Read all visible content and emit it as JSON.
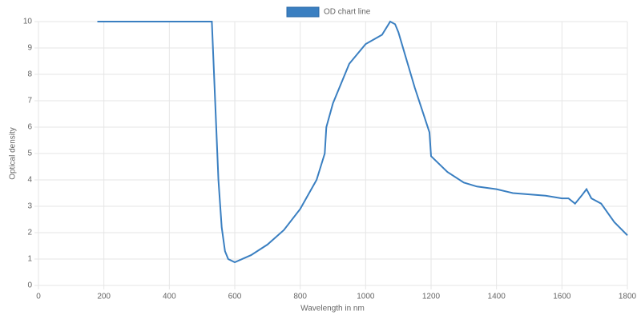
{
  "chart_data": {
    "type": "line",
    "x_label": "Wavelength in nm",
    "y_label": "Optical density",
    "series": [
      {
        "name": "OD chart line",
        "color": "#3a7fc1",
        "x": [
          180,
          300,
          400,
          530,
          540,
          550,
          560,
          570,
          580,
          600,
          650,
          700,
          750,
          800,
          850,
          875,
          880,
          900,
          950,
          1000,
          1050,
          1075,
          1090,
          1100,
          1150,
          1195,
          1200,
          1250,
          1300,
          1340,
          1400,
          1450,
          1500,
          1550,
          1600,
          1620,
          1640,
          1660,
          1675,
          1690,
          1720,
          1760,
          1800
        ],
        "values": [
          10,
          10,
          10,
          10,
          7,
          4,
          2.2,
          1.3,
          1.0,
          0.88,
          1.15,
          1.55,
          2.1,
          2.9,
          4.0,
          5.0,
          6.0,
          6.9,
          8.4,
          9.15,
          9.5,
          10.0,
          9.9,
          9.6,
          7.5,
          5.8,
          4.9,
          4.3,
          3.9,
          3.75,
          3.65,
          3.5,
          3.45,
          3.4,
          3.3,
          3.3,
          3.1,
          3.4,
          3.65,
          3.3,
          3.1,
          2.4,
          1.9
        ]
      }
    ],
    "xlim": [
      0,
      1800
    ],
    "xticks": [
      0,
      200,
      400,
      600,
      800,
      1000,
      1200,
      1400,
      1600,
      1800
    ],
    "ylim": [
      0,
      10
    ],
    "yticks": [
      0,
      1,
      2,
      3,
      4,
      5,
      6,
      7,
      8,
      9,
      10
    ],
    "grid": true,
    "legend": "top"
  }
}
